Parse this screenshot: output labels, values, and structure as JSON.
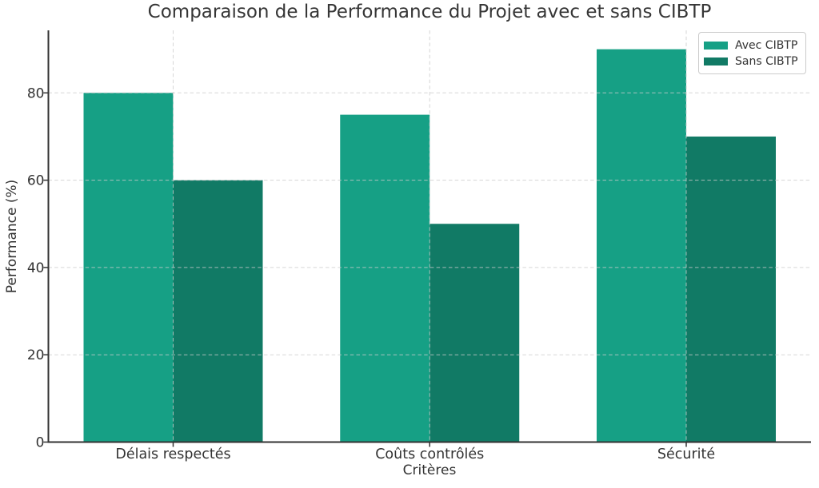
{
  "chart_data": {
    "type": "bar",
    "title": "Comparaison de la Performance du Projet avec et sans CIBTP",
    "xlabel": "Critères",
    "ylabel": "Performance (%)",
    "categories": [
      "Délais respectés",
      "Coûts contrôlés",
      "Sécurité"
    ],
    "series": [
      {
        "name": "Avec CIBTP",
        "color": "#16a085",
        "values": [
          80,
          75,
          90
        ]
      },
      {
        "name": "Sans CIBTP",
        "color": "#117a65",
        "values": [
          60,
          50,
          70
        ]
      }
    ],
    "yticks": [
      0,
      20,
      40,
      60,
      80
    ],
    "ylim": [
      0,
      94.3
    ],
    "grid": "dashed, both axes, drawn over bars",
    "grid_color": "#cccccc",
    "spine_color": "#333333",
    "text_color": "#333333",
    "legend_position": "upper right"
  }
}
